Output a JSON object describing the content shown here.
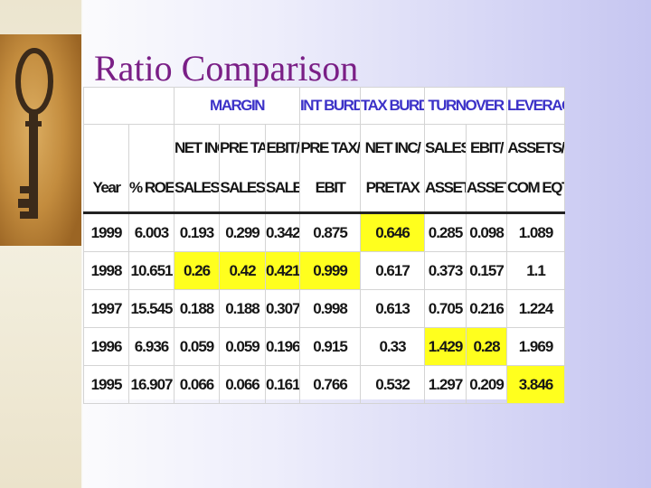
{
  "slide": {
    "title": "Ratio Comparison"
  },
  "colors": {
    "title": "#7a1f86",
    "group_header": "#3c32c8",
    "highlight": "#ffff1e"
  },
  "table": {
    "groups": [
      {
        "label": "",
        "span": 2
      },
      {
        "label": "MARGIN",
        "span": 3
      },
      {
        "label": "INT BURDEN",
        "span": 1
      },
      {
        "label": "TAX BURDEN",
        "span": 1
      },
      {
        "label": "TURNOVER",
        "span": 2
      },
      {
        "label": "LEVERAGE",
        "span": 1
      }
    ],
    "headers": [
      {
        "line1": "",
        "line2": "Year"
      },
      {
        "line1": "",
        "line2": "% ROE"
      },
      {
        "line1": "NET INC/",
        "line2": "SALES"
      },
      {
        "line1": "PRE TAX/",
        "line2": "SALES"
      },
      {
        "line1": "EBIT/",
        "line2": "SALES"
      },
      {
        "line1": "PRE TAX/",
        "line2": "EBIT"
      },
      {
        "line1": "NET INC/",
        "line2": "PRETAX"
      },
      {
        "line1": "SALES/",
        "line2": "ASSETS"
      },
      {
        "line1": "EBIT/",
        "line2": "ASSETS"
      },
      {
        "line1": "ASSETS/",
        "line2": "COM EQTY"
      }
    ],
    "rows": [
      {
        "cells": [
          "1999",
          "6.003",
          "0.193",
          "0.299",
          "0.342",
          "0.875",
          "0.646",
          "0.285",
          "0.098",
          "1.089"
        ],
        "highlight": [
          6
        ]
      },
      {
        "cells": [
          "1998",
          "10.651",
          "0.26",
          "0.42",
          "0.421",
          "0.999",
          "0.617",
          "0.373",
          "0.157",
          "1.1"
        ],
        "highlight": [
          2,
          3,
          4,
          5
        ]
      },
      {
        "cells": [
          "1997",
          "15.545",
          "0.188",
          "0.188",
          "0.307",
          "0.998",
          "0.613",
          "0.705",
          "0.216",
          "1.224"
        ],
        "highlight": []
      },
      {
        "cells": [
          "1996",
          "6.936",
          "0.059",
          "0.059",
          "0.196",
          "0.915",
          "0.33",
          "1.429",
          "0.28",
          "1.969"
        ],
        "highlight": [
          7,
          8
        ]
      },
      {
        "cells": [
          "1995",
          "16.907",
          "0.066",
          "0.066",
          "0.161",
          "0.766",
          "0.532",
          "1.297",
          "0.209",
          "3.846"
        ],
        "highlight": [
          9
        ]
      }
    ]
  }
}
